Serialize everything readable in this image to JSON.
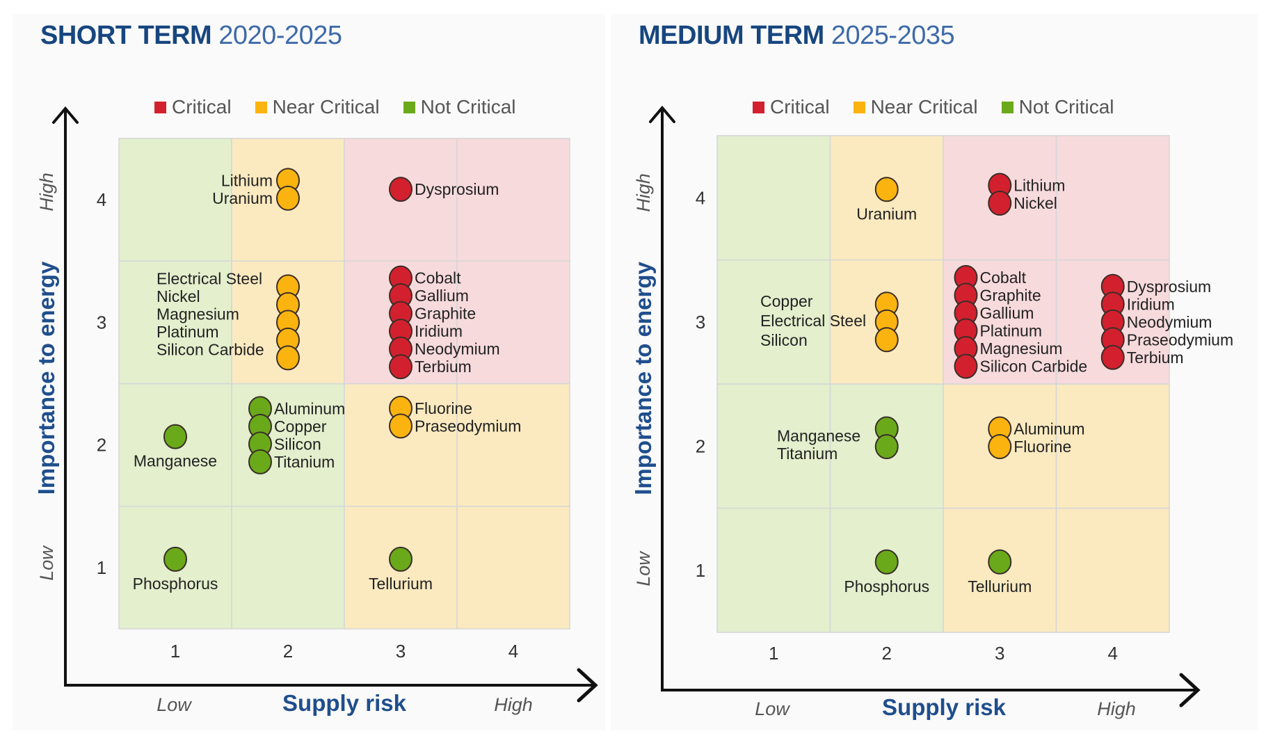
{
  "colors": {
    "critical": "#d3202e",
    "near_critical": "#fbb40f",
    "not_critical": "#6aaa1a",
    "cell_critical": "#f7dadc",
    "cell_near_critical": "#fbeac0",
    "cell_not_critical": "#e3efcd",
    "title": "#1f4e8c",
    "dot_outline": "#3a2e28"
  },
  "chart_data": [
    {
      "type": "scatter",
      "title_bold": "SHORT TERM",
      "title_light": "2020-2025",
      "xlabel": "Supply risk",
      "ylabel": "Importance to energy",
      "x_low_label": "Low",
      "x_high_label": "High",
      "y_low_label": "Low",
      "y_high_label": "High",
      "x_ticks": [
        "1",
        "2",
        "3",
        "4"
      ],
      "y_ticks": [
        "1",
        "2",
        "3",
        "4"
      ],
      "xlim": [
        1,
        4
      ],
      "ylim": [
        1,
        4
      ],
      "legend": [
        {
          "label": "Critical",
          "color_key": "critical"
        },
        {
          "label": "Near Critical",
          "color_key": "near_critical"
        },
        {
          "label": "Not Critical",
          "color_key": "not_critical"
        }
      ],
      "legend_position": "top",
      "cell_categories": [
        [
          "not_critical",
          "not_critical",
          "near_critical",
          "near_critical"
        ],
        [
          "not_critical",
          "not_critical",
          "near_critical",
          "near_critical"
        ],
        [
          "not_critical",
          "near_critical",
          "critical",
          "critical"
        ],
        [
          "not_critical",
          "near_critical",
          "critical",
          "critical"
        ]
      ],
      "groups": [
        {
          "x": 2,
          "y": 4,
          "category": "near_critical",
          "label_side": "left",
          "materials": [
            "Lithium",
            "Uranium"
          ]
        },
        {
          "x": 3,
          "y": 4,
          "category": "critical",
          "label_side": "right",
          "materials": [
            "Dysprosium"
          ]
        },
        {
          "x": 2,
          "y": 3,
          "category": "near_critical",
          "label_side": "left-block",
          "materials": [
            "Electrical Steel",
            "Nickel",
            "Magnesium",
            "Platinum",
            "Silicon Carbide"
          ]
        },
        {
          "x": 3,
          "y": 3,
          "category": "critical",
          "label_side": "right",
          "materials": [
            "Cobalt",
            "Gallium",
            "Graphite",
            "Iridium",
            "Neodymium",
            "Terbium"
          ]
        },
        {
          "x": 1,
          "y": 2,
          "category": "not_critical",
          "label_side": "below",
          "materials": [
            "Manganese"
          ]
        },
        {
          "x": 2,
          "y": 2,
          "category": "not_critical",
          "label_side": "right",
          "materials": [
            "Aluminum",
            "Copper",
            "Silicon",
            "Titanium"
          ]
        },
        {
          "x": 3,
          "y": 2,
          "category": "near_critical",
          "label_side": "right",
          "materials": [
            "Fluorine",
            "Praseodymium"
          ]
        },
        {
          "x": 1,
          "y": 1,
          "category": "not_critical",
          "label_side": "below",
          "materials": [
            "Phosphorus"
          ]
        },
        {
          "x": 3,
          "y": 1,
          "category": "not_critical",
          "label_side": "below",
          "materials": [
            "Tellurium"
          ]
        }
      ]
    },
    {
      "type": "scatter",
      "title_bold": "MEDIUM TERM",
      "title_light": "2025-2035",
      "xlabel": "Supply risk",
      "ylabel": "Importance to energy",
      "x_low_label": "Low",
      "x_high_label": "High",
      "y_low_label": "Low",
      "y_high_label": "High",
      "x_ticks": [
        "1",
        "2",
        "3",
        "4"
      ],
      "y_ticks": [
        "1",
        "2",
        "3",
        "4"
      ],
      "xlim": [
        1,
        4
      ],
      "ylim": [
        1,
        4
      ],
      "legend": [
        {
          "label": "Critical",
          "color_key": "critical"
        },
        {
          "label": "Near Critical",
          "color_key": "near_critical"
        },
        {
          "label": "Not Critical",
          "color_key": "not_critical"
        }
      ],
      "legend_position": "top",
      "cell_categories": [
        [
          "not_critical",
          "not_critical",
          "near_critical",
          "near_critical"
        ],
        [
          "not_critical",
          "not_critical",
          "near_critical",
          "near_critical"
        ],
        [
          "not_critical",
          "near_critical",
          "critical",
          "critical"
        ],
        [
          "not_critical",
          "near_critical",
          "critical",
          "critical"
        ]
      ],
      "groups": [
        {
          "x": 2,
          "y": 4,
          "category": "near_critical",
          "label_side": "below",
          "materials": [
            "Uranium"
          ]
        },
        {
          "x": 3,
          "y": 4,
          "category": "critical",
          "label_side": "right",
          "materials": [
            "Lithium",
            "Nickel"
          ]
        },
        {
          "x": 2,
          "y": 3,
          "category": "near_critical",
          "label_side": "left-block",
          "materials": [
            "Copper",
            "Electrical Steel",
            "Silicon"
          ]
        },
        {
          "x": 2.7,
          "y": 3,
          "category": "critical",
          "label_side": "right",
          "materials": [
            "Cobalt",
            "Graphite",
            "Gallium",
            "Platinum",
            "Magnesium",
            "Silicon Carbide"
          ]
        },
        {
          "x": 4,
          "y": 3,
          "category": "critical",
          "label_side": "right",
          "materials": [
            "Dysprosium",
            "Iridium",
            "Neodymium",
            "Praseodymium",
            "Terbium"
          ]
        },
        {
          "x": 2,
          "y": 2,
          "category": "not_critical",
          "label_side": "left-block",
          "materials": [
            "Manganese",
            "Titanium"
          ]
        },
        {
          "x": 3,
          "y": 2,
          "category": "near_critical",
          "label_side": "right",
          "materials": [
            "Aluminum",
            "Fluorine"
          ]
        },
        {
          "x": 2,
          "y": 1,
          "category": "not_critical",
          "label_side": "below",
          "materials": [
            "Phosphorus"
          ]
        },
        {
          "x": 3,
          "y": 1,
          "category": "not_critical",
          "label_side": "below",
          "materials": [
            "Tellurium"
          ]
        }
      ]
    }
  ]
}
